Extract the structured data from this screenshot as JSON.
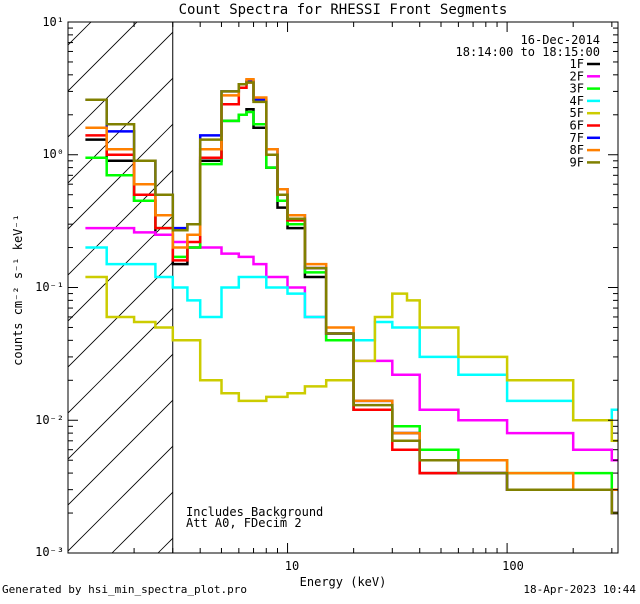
{
  "chart_data": {
    "type": "line",
    "title": "Count Spectra for RHESSI Front Segments",
    "xlabel": "Energy (keV)",
    "ylabel": "counts cm⁻² s⁻¹ keV⁻¹",
    "xscale": "log",
    "yscale": "log",
    "xlim": [
      1,
      320
    ],
    "ylim": [
      0.001,
      10
    ],
    "x_tick_labels": [
      "10",
      "100"
    ],
    "y_tick_labels": [
      "10⁻³",
      "10⁻²",
      "10⁻¹",
      "10⁰",
      "10¹"
    ],
    "date": "16-Dec-2014",
    "time_range": "18:14:00 to 18:15:00",
    "annotation_line1": "Includes Background",
    "annotation_line2": "Att A0, FDecim 2",
    "excluded_region_below_keV": 3,
    "series": [
      {
        "name": "1F",
        "color": "#000000",
        "x": [
          1.2,
          1.5,
          2,
          2.5,
          3,
          3.5,
          4,
          5,
          6,
          6.5,
          7,
          8,
          9,
          10,
          12,
          15,
          20,
          30,
          40,
          60,
          100,
          200,
          300
        ],
        "values": [
          1.3,
          0.9,
          0.45,
          0.25,
          0.15,
          0.2,
          0.9,
          1.8,
          2,
          2.2,
          1.6,
          0.8,
          0.4,
          0.28,
          0.12,
          0.04,
          0.012,
          0.008,
          0.004,
          0.004,
          0.003,
          0.003,
          0.002
        ]
      },
      {
        "name": "2F",
        "color": "#ff00ff",
        "x": [
          1.2,
          1.5,
          2,
          2.5,
          3,
          3.5,
          4,
          5,
          6,
          7,
          8,
          10,
          12,
          15,
          20,
          30,
          40,
          60,
          100,
          200,
          300
        ],
        "values": [
          0.28,
          0.28,
          0.26,
          0.25,
          0.22,
          0.2,
          0.2,
          0.18,
          0.17,
          0.15,
          0.12,
          0.1,
          0.06,
          0.04,
          0.028,
          0.022,
          0.012,
          0.01,
          0.008,
          0.006,
          0.005
        ]
      },
      {
        "name": "3F",
        "color": "#00ff00",
        "x": [
          1.2,
          1.5,
          2,
          2.5,
          3,
          3.5,
          4,
          5,
          6,
          6.5,
          7,
          8,
          9,
          10,
          12,
          15,
          20,
          30,
          40,
          60,
          100,
          200,
          300
        ],
        "values": [
          0.95,
          0.7,
          0.45,
          0.28,
          0.17,
          0.2,
          0.85,
          1.8,
          2,
          2.1,
          1.7,
          0.8,
          0.45,
          0.3,
          0.13,
          0.04,
          0.012,
          0.009,
          0.006,
          0.005,
          0.004,
          0.004,
          0.003
        ]
      },
      {
        "name": "4F",
        "color": "#00ffff",
        "x": [
          1.2,
          1.5,
          2,
          2.5,
          3,
          3.5,
          4,
          5,
          6,
          7,
          8,
          10,
          12,
          15,
          20,
          25,
          30,
          40,
          60,
          100,
          200,
          300
        ],
        "values": [
          0.2,
          0.15,
          0.15,
          0.12,
          0.1,
          0.08,
          0.06,
          0.1,
          0.12,
          0.12,
          0.1,
          0.09,
          0.06,
          0.045,
          0.04,
          0.055,
          0.05,
          0.03,
          0.022,
          0.014,
          0.01,
          0.012
        ]
      },
      {
        "name": "5F",
        "color": "#cccc00",
        "x": [
          1.2,
          1.5,
          2,
          2.5,
          3,
          4,
          5,
          6,
          8,
          10,
          12,
          15,
          20,
          25,
          30,
          35,
          40,
          60,
          100,
          200,
          300
        ],
        "values": [
          0.12,
          0.06,
          0.055,
          0.05,
          0.04,
          0.02,
          0.016,
          0.014,
          0.015,
          0.016,
          0.018,
          0.02,
          0.028,
          0.06,
          0.09,
          0.08,
          0.05,
          0.03,
          0.02,
          0.01,
          0.007
        ]
      },
      {
        "name": "6F",
        "color": "#ff0000",
        "x": [
          1.2,
          1.5,
          2,
          2.5,
          3,
          3.5,
          4,
          5,
          6,
          6.5,
          7,
          8,
          9,
          10,
          12,
          15,
          20,
          30,
          40,
          60,
          100,
          200,
          300
        ],
        "values": [
          1.4,
          1,
          0.5,
          0.28,
          0.16,
          0.22,
          0.95,
          2.4,
          3.2,
          3.5,
          2.6,
          1,
          0.5,
          0.32,
          0.14,
          0.045,
          0.012,
          0.006,
          0.004,
          0.004,
          0.003,
          0.003,
          0.002
        ]
      },
      {
        "name": "7F",
        "color": "#0000ff",
        "x": [
          1.2,
          1.5,
          2,
          2.5,
          3,
          3.5,
          4,
          5,
          6,
          6.5,
          7,
          8,
          9,
          10,
          12,
          15,
          20,
          30,
          40,
          60,
          100,
          200,
          300
        ],
        "values": [
          2.6,
          1.5,
          0.9,
          0.5,
          0.28,
          0.3,
          1.4,
          3,
          3.4,
          3.6,
          2.6,
          1.1,
          0.55,
          0.35,
          0.14,
          0.045,
          0.014,
          0.008,
          0.005,
          0.004,
          0.003,
          0.003,
          0.002
        ]
      },
      {
        "name": "8F",
        "color": "#ff8000",
        "x": [
          1.2,
          1.5,
          2,
          2.5,
          3,
          3.5,
          4,
          5,
          6,
          6.5,
          7,
          8,
          9,
          10,
          12,
          15,
          20,
          30,
          40,
          60,
          100,
          200,
          300
        ],
        "values": [
          1.6,
          1.1,
          0.6,
          0.35,
          0.2,
          0.25,
          1.1,
          2.8,
          3.4,
          3.7,
          2.7,
          1.1,
          0.55,
          0.35,
          0.15,
          0.05,
          0.014,
          0.008,
          0.005,
          0.005,
          0.004,
          0.003,
          0.003
        ]
      },
      {
        "name": "9F",
        "color": "#808000",
        "x": [
          1.2,
          1.5,
          2,
          2.5,
          3,
          3.5,
          4,
          5,
          6,
          6.5,
          7,
          8,
          9,
          10,
          12,
          15,
          20,
          30,
          40,
          60,
          100,
          200,
          300
        ],
        "values": [
          2.6,
          1.7,
          0.9,
          0.5,
          0.27,
          0.3,
          1.3,
          3,
          3.4,
          3.5,
          2.5,
          1,
          0.5,
          0.33,
          0.14,
          0.045,
          0.013,
          0.007,
          0.005,
          0.004,
          0.003,
          0.003,
          0.002
        ]
      }
    ]
  },
  "footer": {
    "generated_by": "Generated by hsi_min_spectra_plot.pro",
    "timestamp": "18-Apr-2023 10:44"
  }
}
